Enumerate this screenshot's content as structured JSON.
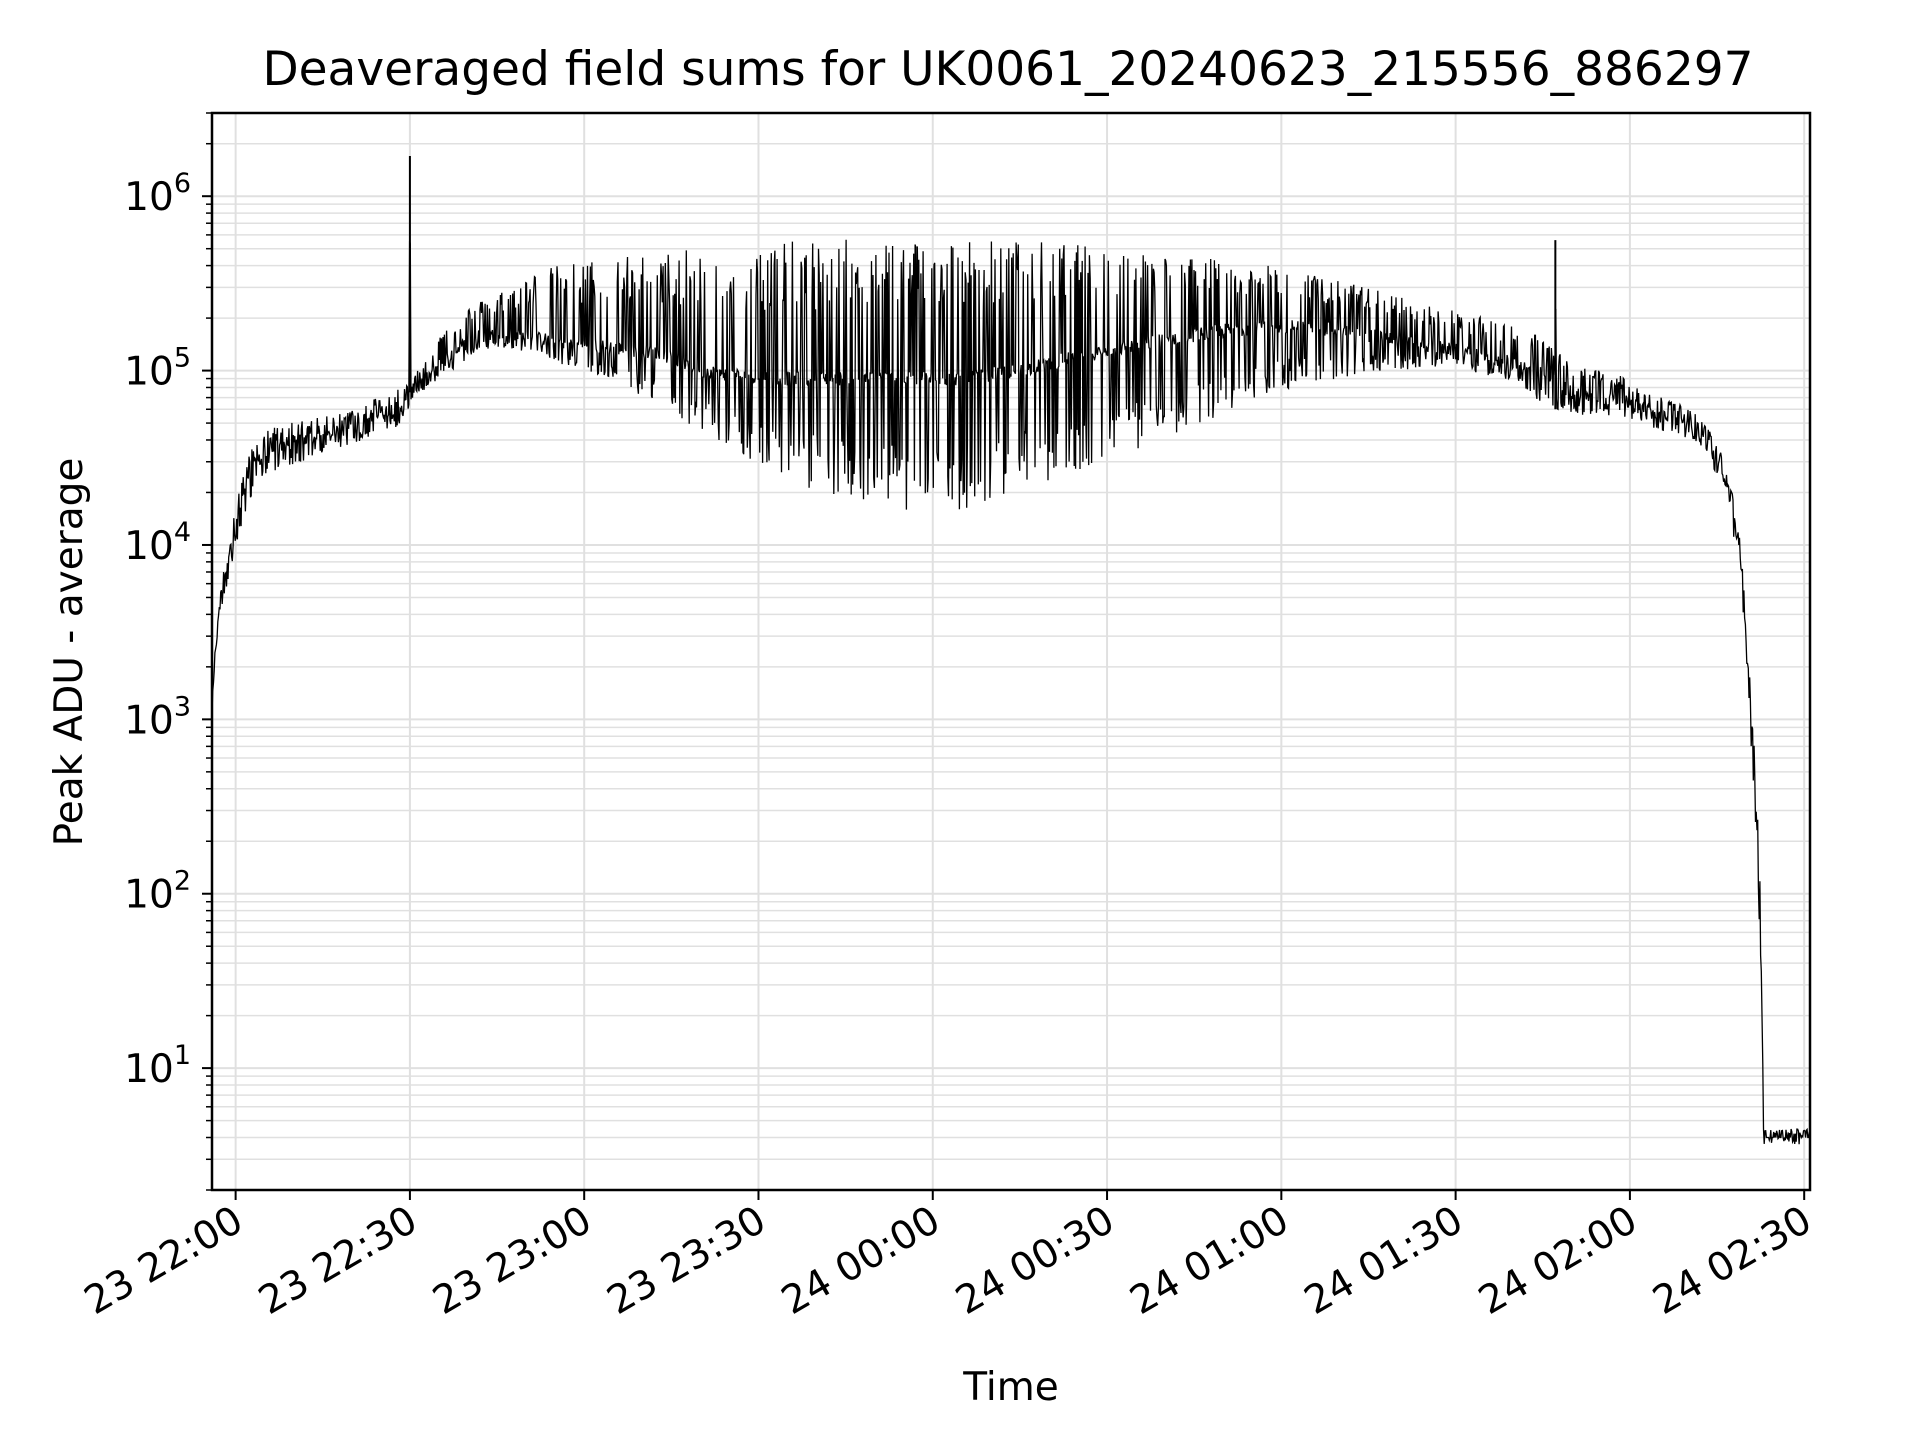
{
  "chart_data": {
    "type": "line",
    "title": "Deaveraged field sums for UK0061_20240623_215556_886297",
    "xlabel": "Time",
    "ylabel": "Peak ADU - average",
    "yscale": "log",
    "ylim": [
      2,
      3000000
    ],
    "xlim": [
      "2024-06-23 21:55:56",
      "2024-06-24 02:31:00"
    ],
    "x_ticks": [
      "23 22:00",
      "23 22:30",
      "23 23:00",
      "23 23:30",
      "24 00:00",
      "24 00:30",
      "24 01:00",
      "24 01:30",
      "24 02:00",
      "24 02:30"
    ],
    "y_ticks": [
      {
        "base": "10",
        "exp": "1"
      },
      {
        "base": "10",
        "exp": "2"
      },
      {
        "base": "10",
        "exp": "3"
      },
      {
        "base": "10",
        "exp": "4"
      },
      {
        "base": "10",
        "exp": "5"
      },
      {
        "base": "10",
        "exp": "6"
      }
    ],
    "grid": true,
    "line_color": "#000000",
    "grid_color": "#e0e0e0",
    "series": [
      {
        "x": [
          "23 21:55:56",
          "23 21:56:30",
          "23 21:57:30",
          "23 21:59:00",
          "23 22:01:00",
          "23 22:03:00",
          "23 22:05:00",
          "23 22:08:00",
          "23 22:12:00",
          "23 22:16:00",
          "23 22:20:00",
          "23 22:24:00",
          "23 22:28:00",
          "23 22:29:50",
          "23 22:30:00",
          "23 22:30:10",
          "23 22:33:00",
          "23 22:36:00",
          "23 22:39:00",
          "23 22:42:00",
          "23 22:46:00",
          "23 22:50:00",
          "23 22:55:00",
          "23 23:00:00",
          "23 23:05:00",
          "23 23:10:00",
          "23 23:15:00",
          "23 23:20:00",
          "23 23:25:00",
          "23 23:30:00",
          "23 23:35:00",
          "23 23:40:00",
          "23 23:45:00",
          "23 23:50:00",
          "23 23:55:00",
          "24 00:00:00",
          "24 00:05:00",
          "24 00:10:00",
          "24 00:15:00",
          "24 00:20:00",
          "24 00:25:00",
          "24 00:30:00",
          "24 00:35:00",
          "24 00:40:00",
          "24 00:45:00",
          "24 00:50:00",
          "24 00:55:00",
          "24 01:00:00",
          "24 01:05:00",
          "24 01:10:00",
          "24 01:15:00",
          "24 01:20:00",
          "24 01:25:00",
          "24 01:30:00",
          "24 01:35:00",
          "24 01:40:00",
          "24 01:45:00",
          "24 01:47:00",
          "24 01:47:10",
          "24 01:47:20",
          "24 01:50:00",
          "24 01:55:00",
          "24 02:00:00",
          "24 02:05:00",
          "24 02:10:00",
          "24 02:13:00",
          "24 02:15:00",
          "24 02:17:00",
          "24 02:19:00",
          "24 02:20:00",
          "24 02:21:00",
          "24 02:22:00",
          "24 02:22:40",
          "24 02:23:00",
          "24 02:23:30",
          "24 02:24:00",
          "24 02:25:00",
          "24 02:27:00",
          "24 02:29:00",
          "24 02:31:00"
        ],
        "y_mid": [
          1100,
          2500,
          5000,
          10000,
          18000,
          28000,
          33000,
          38000,
          40000,
          42000,
          48000,
          56000,
          62000,
          65000,
          1700000,
          75000,
          90000,
          115000,
          140000,
          158000,
          160000,
          155000,
          148000,
          140000,
          135000,
          130000,
          120000,
          100000,
          95000,
          92000,
          90000,
          90000,
          90000,
          90000,
          90000,
          90000,
          90000,
          95000,
          100000,
          110000,
          120000,
          130000,
          140000,
          150000,
          160000,
          170000,
          175000,
          180000,
          175000,
          170000,
          160000,
          150000,
          140000,
          130000,
          120000,
          110000,
          95000,
          90000,
          560000,
          85000,
          75000,
          70000,
          65000,
          55000,
          48000,
          42000,
          32000,
          20000,
          9000,
          3000,
          900,
          200,
          30,
          4,
          4,
          4,
          4,
          4,
          4,
          4
        ],
        "y_low": [
          1100,
          2500,
          4000,
          7000,
          13000,
          20000,
          25000,
          28000,
          30000,
          34000,
          38000,
          42000,
          48000,
          55000,
          75000,
          68000,
          80000,
          95000,
          110000,
          130000,
          135000,
          125000,
          110000,
          100000,
          85000,
          70000,
          55000,
          45000,
          35000,
          28000,
          23000,
          20000,
          18000,
          17000,
          16000,
          15000,
          16000,
          18000,
          20000,
          23000,
          27000,
          30000,
          35000,
          40000,
          48000,
          55000,
          65000,
          75000,
          85000,
          90000,
          95000,
          100000,
          105000,
          105000,
          95000,
          85000,
          65000,
          60000,
          60000,
          60000,
          55000,
          55000,
          52000,
          45000,
          40000,
          35000,
          25000,
          15000,
          7000,
          2000,
          600,
          120,
          20,
          4,
          4,
          4,
          4,
          4,
          4,
          4
        ],
        "y_high": [
          1100,
          2500,
          6000,
          13000,
          24000,
          38000,
          45000,
          50000,
          52000,
          55000,
          60000,
          70000,
          80000,
          85000,
          1700000,
          95000,
          120000,
          180000,
          220000,
          250000,
          300000,
          350000,
          400000,
          430000,
          450000,
          470000,
          480000,
          500000,
          520000,
          540000,
          550000,
          560000,
          570000,
          580000,
          585000,
          590000,
          580000,
          570000,
          560000,
          550000,
          530000,
          510000,
          490000,
          470000,
          450000,
          430000,
          410000,
          390000,
          360000,
          330000,
          300000,
          270000,
          240000,
          220000,
          200000,
          180000,
          160000,
          130000,
          560000,
          130000,
          110000,
          100000,
          90000,
          75000,
          60000,
          52000,
          40000,
          26000,
          11000,
          4000,
          1200,
          300,
          60,
          4.5,
          4.5,
          4.5,
          4.5,
          4.5,
          4.5,
          4.5
        ]
      }
    ]
  }
}
